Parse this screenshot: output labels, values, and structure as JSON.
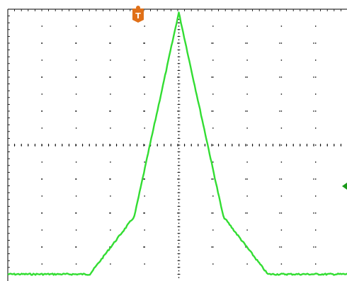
{
  "trigger": {
    "label": "T",
    "color": "#e07018"
  },
  "level_marker": {
    "color": "#1a9a1a"
  },
  "colors": {
    "trace": "#33dd33",
    "grid": "#000000",
    "background": "#ffffff",
    "frame": "#000000"
  },
  "chart_data": {
    "type": "line",
    "title": "",
    "xlabel": "",
    "ylabel": "",
    "grid": true,
    "divisions": {
      "x": 10,
      "y": 8
    },
    "series": [
      {
        "x": [
          0,
          2.4,
          3.7,
          5.0,
          6.3,
          7.6,
          10
        ],
        "y": [
          -3.8,
          -3.8,
          -2.1,
          3.9,
          -2.1,
          -3.8,
          -3.8
        ]
      }
    ]
  }
}
